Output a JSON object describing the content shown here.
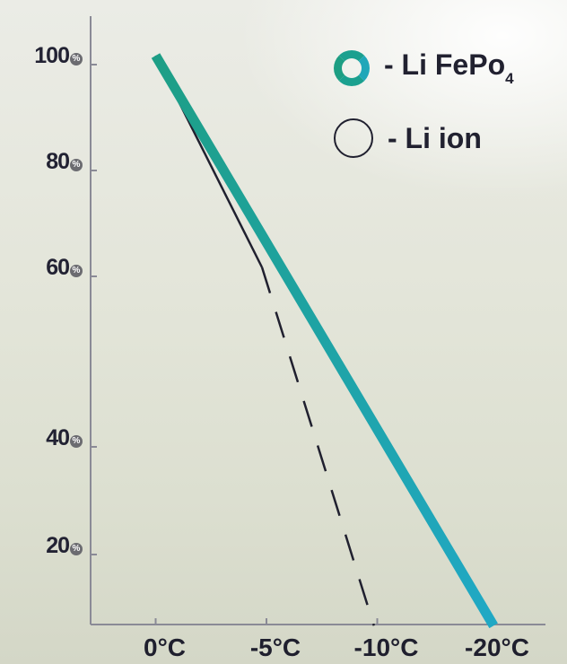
{
  "chart_data": {
    "type": "line",
    "x": [
      "0°C",
      "-5°C",
      "-10°C",
      "-20°C"
    ],
    "y_ticks": [
      {
        "value": 100,
        "label": "100",
        "suffix": "%"
      },
      {
        "value": 80,
        "label": "80",
        "suffix": "%"
      },
      {
        "value": 60,
        "label": "60",
        "suffix": "%"
      },
      {
        "value": 40,
        "label": "40",
        "suffix": "%"
      },
      {
        "value": 20,
        "label": "20",
        "suffix": "%"
      }
    ],
    "series": [
      {
        "name": "- Li FePo",
        "name_subscript": "4",
        "color": "#1ba08f",
        "color_end": "#1fa6c2",
        "style": "thick",
        "points": [
          [
            1,
            100
          ],
          [
            4.05,
            1
          ]
        ]
      },
      {
        "name": "- Li ion",
        "color": "#20202f",
        "style": "thin",
        "points": [
          [
            1,
            100
          ],
          [
            1.96,
            60
          ]
        ],
        "dashed_points": [
          [
            1.96,
            60
          ],
          [
            2.97,
            1
          ]
        ]
      }
    ]
  }
}
